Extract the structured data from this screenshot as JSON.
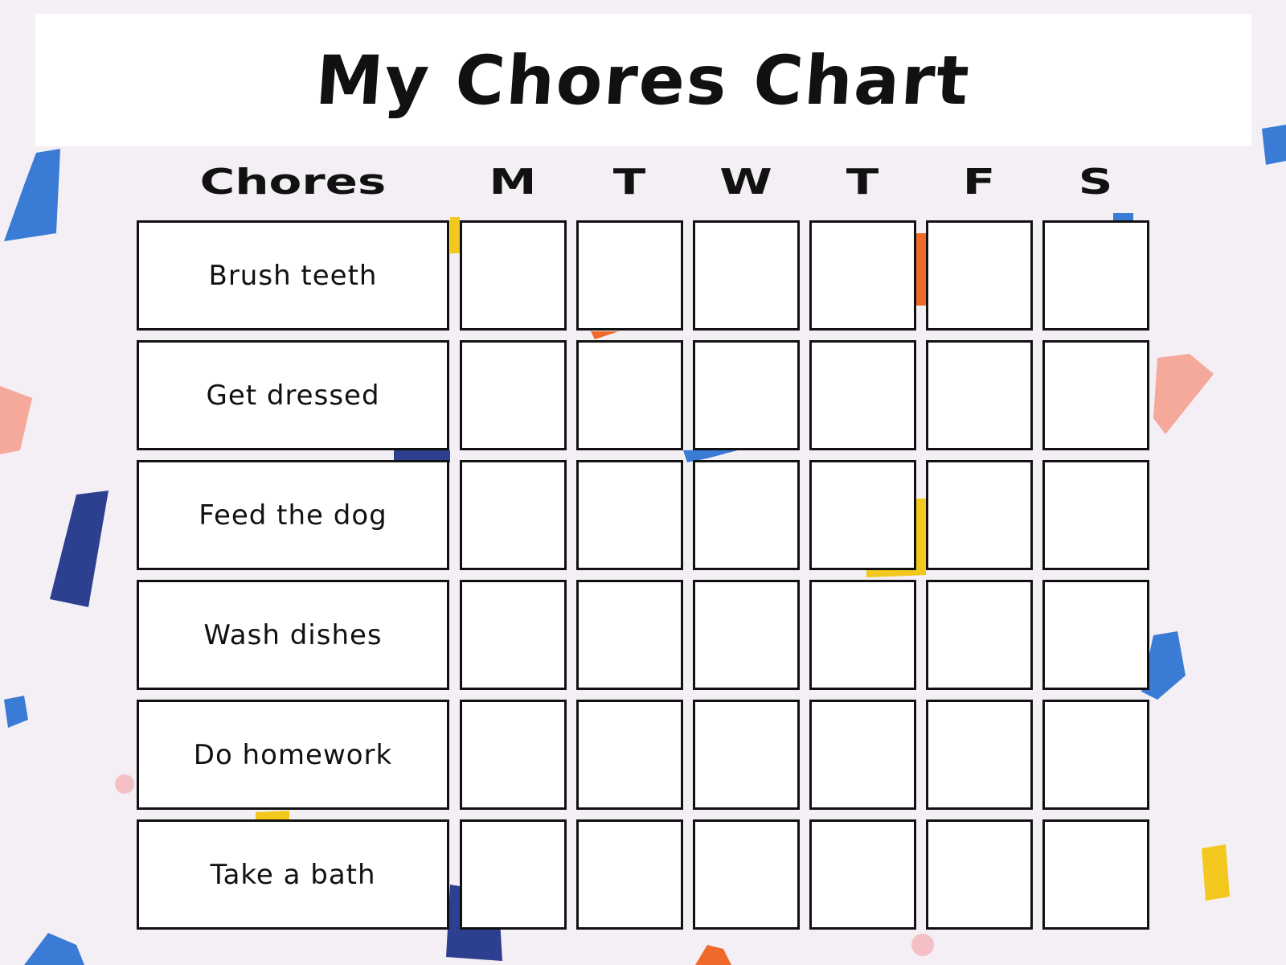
{
  "title": "My Chores Chart",
  "headers": {
    "chores": "Chores",
    "days": [
      "M",
      "T",
      "W",
      "T",
      "F",
      "S"
    ]
  },
  "chores": [
    "Brush teeth",
    "Get dressed",
    "Feed the dog",
    "Wash dishes",
    "Do homework",
    "Take a bath"
  ],
  "colors": {
    "background": "#f3eff4",
    "blue": "#3a7bd5",
    "navy": "#2d3f8f",
    "pink": "#f4a99a",
    "yellow": "#f2c81e",
    "orange": "#ef6a2a"
  }
}
